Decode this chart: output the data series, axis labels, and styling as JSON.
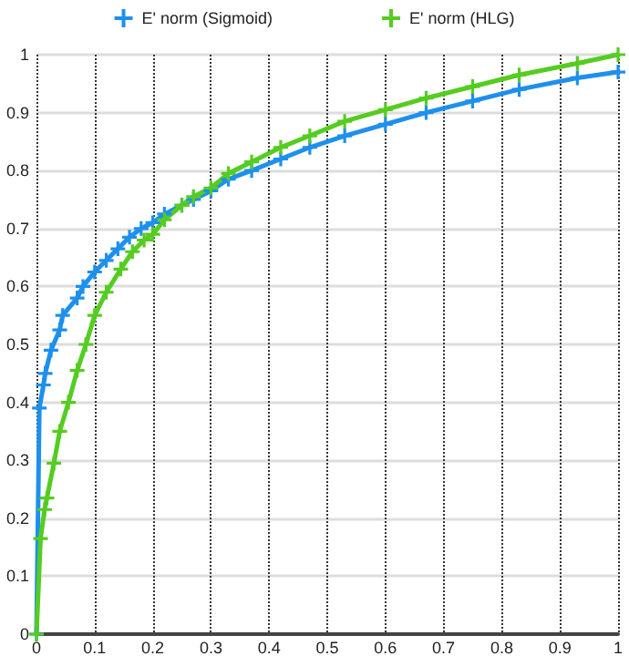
{
  "chart_data": {
    "type": "line",
    "xlim": [
      0,
      1
    ],
    "xticks": [
      0,
      0.1,
      0.2,
      0.3,
      0.4,
      0.5,
      0.6,
      0.7,
      0.8,
      0.9,
      1
    ],
    "ylim": [
      0,
      1
    ],
    "yticks": [
      0,
      0.1,
      0.2,
      0.3,
      0.4,
      0.5,
      0.6,
      0.7,
      0.8,
      0.9,
      1
    ],
    "grid": true,
    "legend": "top",
    "marker": "cross",
    "line_style": "solid",
    "series": [
      {
        "name": "E' norm (Sigmoid)",
        "color": "#1e90ec",
        "x": [
          0,
          0.005,
          0.012,
          0.015,
          0.025,
          0.04,
          0.045,
          0.07,
          0.08,
          0.1,
          0.12,
          0.14,
          0.16,
          0.18,
          0.2,
          0.22,
          0.25,
          0.27,
          0.3,
          0.33,
          0.37,
          0.42,
          0.47,
          0.53,
          0.6,
          0.67,
          0.75,
          0.83,
          0.93,
          1
        ],
        "values": [
          0,
          0.39,
          0.43,
          0.45,
          0.49,
          0.525,
          0.55,
          0.58,
          0.6,
          0.625,
          0.645,
          0.665,
          0.685,
          0.7,
          0.71,
          0.725,
          0.74,
          0.75,
          0.765,
          0.785,
          0.8,
          0.82,
          0.84,
          0.86,
          0.88,
          0.9,
          0.92,
          0.94,
          0.96,
          0.97
        ]
      },
      {
        "name": "E' norm (HLG)",
        "color": "#55cc22",
        "x": [
          0,
          0.007,
          0.014,
          0.018,
          0.03,
          0.04,
          0.055,
          0.07,
          0.085,
          0.1,
          0.12,
          0.145,
          0.165,
          0.185,
          0.2,
          0.22,
          0.25,
          0.27,
          0.3,
          0.33,
          0.37,
          0.42,
          0.47,
          0.53,
          0.6,
          0.67,
          0.75,
          0.83,
          0.93,
          1
        ],
        "values": [
          0,
          0.165,
          0.215,
          0.235,
          0.295,
          0.35,
          0.4,
          0.455,
          0.5,
          0.55,
          0.59,
          0.63,
          0.66,
          0.68,
          0.69,
          0.715,
          0.74,
          0.755,
          0.77,
          0.795,
          0.815,
          0.84,
          0.86,
          0.885,
          0.905,
          0.925,
          0.945,
          0.965,
          0.985,
          1
        ]
      }
    ]
  }
}
